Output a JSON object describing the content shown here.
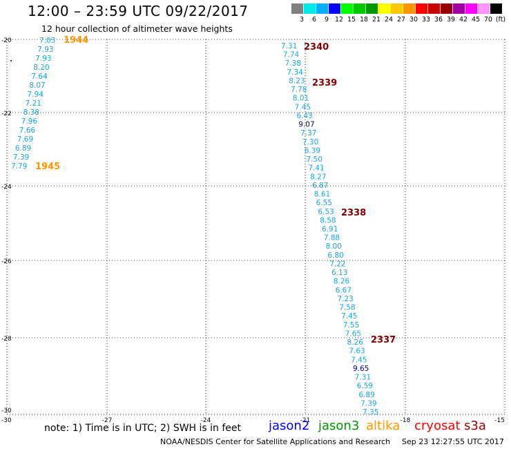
{
  "header": {
    "title": "12:00 – 23:59 UTC 09/22/2017",
    "subtitle": "12 hour collection of altimeter wave heights"
  },
  "color_scale": {
    "colors": [
      "#808080",
      "#00e8e8",
      "#00b0ff",
      "#0000ff",
      "#00ff00",
      "#00c800",
      "#009600",
      "#ffff00",
      "#ffc800",
      "#ff9600",
      "#ff0000",
      "#c80000",
      "#960000",
      "#a000a0",
      "#ff00ff",
      "#ff96ff",
      "#000000"
    ],
    "labels": [
      "3",
      "6",
      "9",
      "12",
      "15",
      "18",
      "21",
      "24",
      "27",
      "30",
      "33",
      "36",
      "39",
      "42",
      "45",
      "70",
      "(ft)"
    ]
  },
  "axes": {
    "lat_labels": [
      "-20",
      "-22",
      "-24",
      "-26",
      "-28",
      "-30"
    ],
    "lon_labels": [
      "-30",
      "-27",
      "-24",
      "-21",
      "-18",
      "-15"
    ]
  },
  "observations": {
    "colors": {
      "cyan": "#1aa6e6",
      "navy": "#00008b"
    },
    "track_west": [
      {
        "v": "7.03",
        "c": "cyan"
      },
      {
        "v": "7.93",
        "c": "cyan"
      },
      {
        "v": "7.93",
        "c": "cyan"
      },
      {
        "v": "8.20",
        "c": "cyan"
      },
      {
        "v": "7.64",
        "c": "cyan"
      },
      {
        "v": "8.07",
        "c": "cyan"
      },
      {
        "v": "7.94",
        "c": "cyan"
      },
      {
        "v": "7.21",
        "c": "cyan"
      },
      {
        "v": "8.38",
        "c": "cyan"
      },
      {
        "v": "7.96",
        "c": "cyan"
      },
      {
        "v": "7.66",
        "c": "cyan"
      },
      {
        "v": "7.69",
        "c": "cyan"
      },
      {
        "v": "6.89",
        "c": "cyan"
      },
      {
        "v": "7.39",
        "c": "cyan"
      },
      {
        "v": "7.79",
        "c": "cyan"
      }
    ],
    "track_east": [
      {
        "v": "7.31",
        "c": "cyan"
      },
      {
        "v": "7.74",
        "c": "cyan"
      },
      {
        "v": "7.38",
        "c": "cyan"
      },
      {
        "v": "7.34",
        "c": "cyan"
      },
      {
        "v": "8.23",
        "c": "cyan"
      },
      {
        "v": "7.78",
        "c": "cyan"
      },
      {
        "v": "8.01",
        "c": "cyan"
      },
      {
        "v": "7.45",
        "c": "cyan"
      },
      {
        "v": "6.43",
        "c": "cyan"
      },
      {
        "v": "9.07",
        "c": "navy"
      },
      {
        "v": "7.37",
        "c": "cyan"
      },
      {
        "v": "7.30",
        "c": "cyan"
      },
      {
        "v": "6.39",
        "c": "cyan"
      },
      {
        "v": "7.50",
        "c": "cyan"
      },
      {
        "v": "7.41",
        "c": "cyan"
      },
      {
        "v": "8.27",
        "c": "cyan"
      },
      {
        "v": "6.87",
        "c": "cyan"
      },
      {
        "v": "8.61",
        "c": "cyan"
      },
      {
        "v": "6.55",
        "c": "cyan"
      },
      {
        "v": "6.53",
        "c": "cyan"
      },
      {
        "v": "8.58",
        "c": "cyan"
      },
      {
        "v": "6.91",
        "c": "cyan"
      },
      {
        "v": "7.88",
        "c": "cyan"
      },
      {
        "v": "8.00",
        "c": "cyan"
      },
      {
        "v": "6.80",
        "c": "cyan"
      },
      {
        "v": "7.22",
        "c": "cyan"
      },
      {
        "v": "6.13",
        "c": "cyan"
      },
      {
        "v": "8.26",
        "c": "cyan"
      },
      {
        "v": "6.67",
        "c": "cyan"
      },
      {
        "v": "7.23",
        "c": "cyan"
      },
      {
        "v": "7.58",
        "c": "cyan"
      },
      {
        "v": "7.45",
        "c": "cyan"
      },
      {
        "v": "7.55",
        "c": "cyan"
      },
      {
        "v": "7.65",
        "c": "cyan"
      },
      {
        "v": "8.26",
        "c": "cyan"
      },
      {
        "v": "7.63",
        "c": "cyan"
      },
      {
        "v": "7.45",
        "c": "cyan"
      },
      {
        "v": "9.65",
        "c": "navy"
      },
      {
        "v": "7.31",
        "c": "cyan"
      },
      {
        "v": "6.59",
        "c": "cyan"
      },
      {
        "v": "6.89",
        "c": "cyan"
      },
      {
        "v": "7.39",
        "c": "cyan"
      },
      {
        "v": "7.35",
        "c": "cyan"
      }
    ],
    "time_labels": [
      {
        "text": "1944",
        "color": "#ff9600"
      },
      {
        "text": "1945",
        "color": "#ff9600"
      },
      {
        "text": "2340",
        "color": "#800000"
      },
      {
        "text": "2339",
        "color": "#800000"
      },
      {
        "text": "2338",
        "color": "#800000"
      },
      {
        "text": "2337",
        "color": "#800000"
      }
    ]
  },
  "footer": {
    "note": "note: 1) Time is in UTC; 2) SWH is in feet",
    "satellites": [
      {
        "name": "jason2",
        "color": "#0000ff"
      },
      {
        "name": "jason3",
        "color": "#009600"
      },
      {
        "name": "altika",
        "color": "#ff9600"
      },
      {
        "name": "cryosat",
        "color": "#ff0000"
      },
      {
        "name": "s3a",
        "color": "#a00000"
      }
    ],
    "credit": "NOAA/NESDIS Center for Satellite Applications and Research",
    "timestamp": "Sep 23 12:27:55 UTC 2017"
  }
}
